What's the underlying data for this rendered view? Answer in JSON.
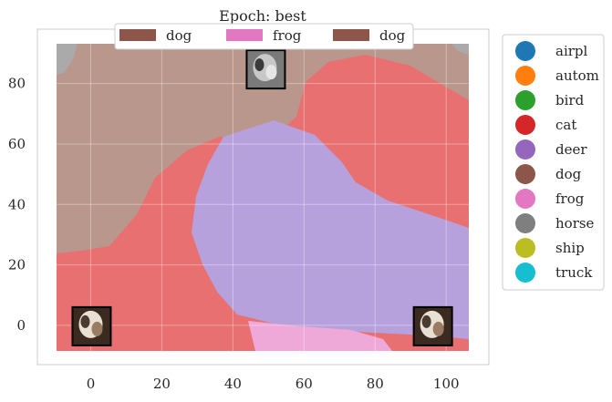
{
  "chart_data": {
    "type": "decision-region-map",
    "title": "Epoch: best",
    "xlabel": "",
    "ylabel": "",
    "xlim": [
      -15,
      112
    ],
    "ylim": [
      -13,
      98
    ],
    "xticks": [
      0,
      20,
      40,
      60,
      80,
      100
    ],
    "yticks": [
      0,
      20,
      40,
      60,
      80
    ],
    "grid": true,
    "classes": [
      {
        "name": "airpl",
        "color": "#1f77b4"
      },
      {
        "name": "autom",
        "color": "#ff7f0e"
      },
      {
        "name": "bird",
        "color": "#2ca02c"
      },
      {
        "name": "cat",
        "color": "#d62728"
      },
      {
        "name": "deer",
        "color": "#9467bd"
      },
      {
        "name": "dog",
        "color": "#8c564b"
      },
      {
        "name": "frog",
        "color": "#e377c2"
      },
      {
        "name": "horse",
        "color": "#7f7f7f"
      },
      {
        "name": "ship",
        "color": "#bcbd22"
      },
      {
        "name": "truck",
        "color": "#17becf"
      }
    ],
    "legend_placement": "outside-right",
    "top_legend": {
      "placement": "top-center",
      "entries": [
        {
          "label": "dog",
          "color": "#8c564b"
        },
        {
          "label": "frog",
          "color": "#e377c2"
        },
        {
          "label": "dog",
          "color": "#8c564b"
        }
      ]
    },
    "samples": [
      {
        "x": 0,
        "y": 0,
        "label": "dog",
        "thumbnail": "dog-thumbnail"
      },
      {
        "x": 49,
        "y": 85,
        "label": "frog",
        "thumbnail": "frog-thumbnail"
      },
      {
        "x": 96,
        "y": 0,
        "label": "dog",
        "thumbnail": "dog-thumbnail"
      }
    ],
    "region_colors": {
      "dog": "#b9978c",
      "cat": "#e87070",
      "deer": "#b7a1dd",
      "frog": "#eea9d9",
      "horse": "#aaaaaa"
    }
  }
}
